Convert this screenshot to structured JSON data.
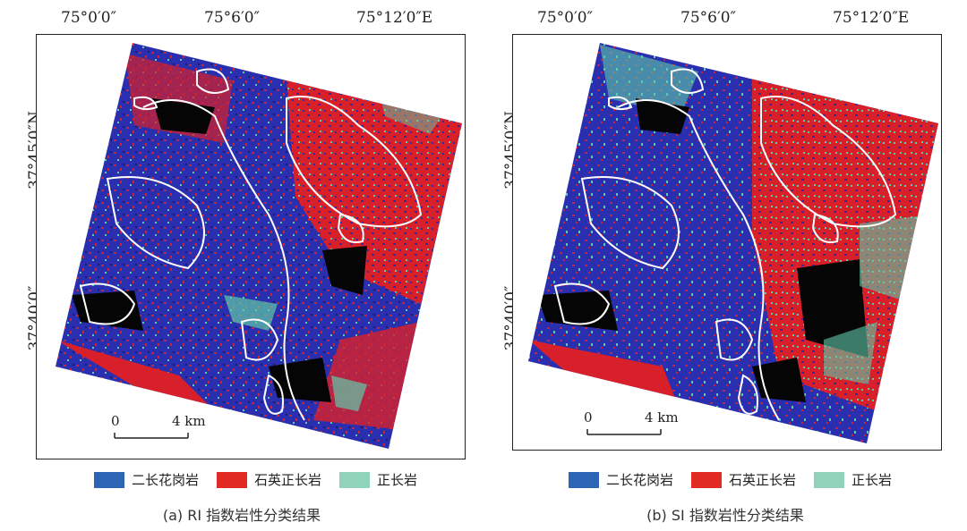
{
  "panels": [
    {
      "id": "a",
      "lon_labels": [
        "75°0′0″",
        "75°6′0″",
        "75°12′0″E"
      ],
      "lat_labels": [
        "37°45′0″N",
        "37°40′0″"
      ],
      "scale": {
        "zero": "0",
        "label": "4 km"
      },
      "legend": [
        {
          "label": "二长花岗岩",
          "color": "#2e64b4"
        },
        {
          "label": "石英正长岩",
          "color": "#e02a23"
        },
        {
          "label": "正长岩",
          "color": "#8fd3b8"
        }
      ],
      "caption": "(a) RI 指数岩性分类结果"
    },
    {
      "id": "b",
      "lon_labels": [
        "75°0′0″",
        "75°6′0″",
        "75°12′0″E"
      ],
      "lat_labels": [
        "37°45′0″N",
        "37°40′0″"
      ],
      "scale": {
        "zero": "0",
        "label": "4 km"
      },
      "legend": [
        {
          "label": "二长花岗岩",
          "color": "#2e64b4"
        },
        {
          "label": "石英正长岩",
          "color": "#e02a23"
        },
        {
          "label": "正长岩",
          "color": "#8fd3b8"
        }
      ],
      "caption": "(b) SI 指数岩性分类结果"
    }
  ],
  "colors": {
    "blue_class": "#2a2fb0",
    "red_class": "#d8202a",
    "cyan_class": "#5fc9a8",
    "background_black": "#050505",
    "boundary": "#ffffff"
  }
}
